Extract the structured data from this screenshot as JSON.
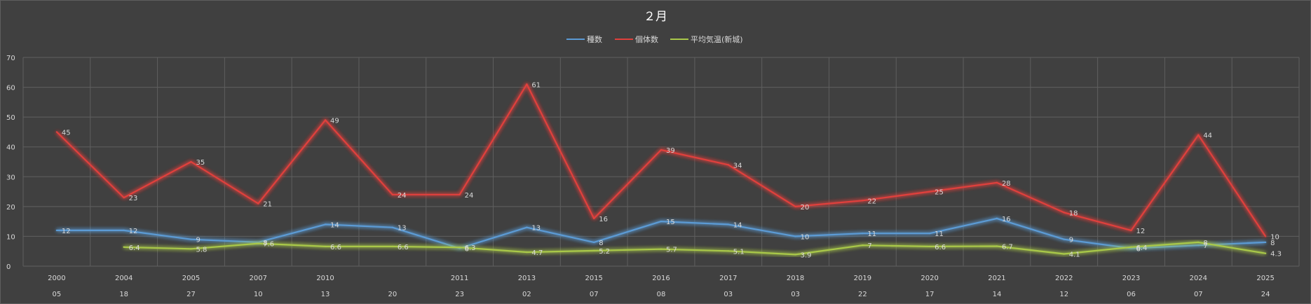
{
  "chart_data": {
    "type": "line",
    "title": "２月",
    "categories": [
      [
        "2000",
        "05"
      ],
      [
        "2004",
        "18"
      ],
      [
        "2005",
        "27"
      ],
      [
        "2007",
        "10"
      ],
      [
        "2010",
        "13"
      ],
      [
        "",
        "20"
      ],
      [
        "2011",
        "23"
      ],
      [
        "2013",
        "02"
      ],
      [
        "2015",
        "07"
      ],
      [
        "2016",
        "08"
      ],
      [
        "2017",
        "03"
      ],
      [
        "2018",
        "03"
      ],
      [
        "2019",
        "22"
      ],
      [
        "2020",
        "17"
      ],
      [
        "2021",
        "14"
      ],
      [
        "2022",
        "12"
      ],
      [
        "2023",
        "06"
      ],
      [
        "2024",
        "07"
      ],
      [
        "2025",
        "24"
      ]
    ],
    "series": [
      {
        "name": "種数",
        "color": "#5b9bd5",
        "values": [
          12,
          12,
          9,
          8,
          14,
          13,
          6,
          13,
          8,
          15,
          14,
          10,
          11,
          11,
          16,
          9,
          6,
          7,
          8
        ]
      },
      {
        "name": "個体数",
        "color": "#e0403c",
        "values": [
          45,
          23,
          35,
          21,
          49,
          24,
          24,
          61,
          16,
          39,
          34,
          20,
          22,
          25,
          28,
          18,
          12,
          44,
          10
        ]
      },
      {
        "name": "平均気温(新城)",
        "color": "#a9c84a",
        "values": [
          null,
          6.4,
          5.8,
          7.6,
          6.6,
          6.6,
          6.3,
          4.7,
          5.2,
          5.7,
          5.1,
          3.9,
          7,
          6.6,
          6.7,
          4.1,
          6.4,
          8,
          4.3
        ]
      }
    ],
    "ylim": [
      0,
      70
    ],
    "yticks": [
      0,
      10,
      20,
      30,
      40,
      50,
      60,
      70
    ],
    "grid": true,
    "legend_position": "top-center"
  }
}
